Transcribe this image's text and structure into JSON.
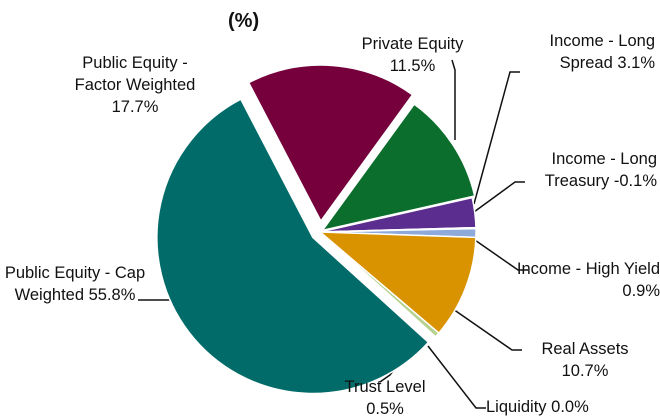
{
  "chart_data": {
    "type": "pie",
    "title": "(%)",
    "categories": [
      "Private Equity",
      "Income - Long Spread",
      "Income - Long Treasury",
      "Income - High Yield",
      "Real Assets",
      "Liquidity",
      "Trust Level",
      "Public Equity - Cap Weighted",
      "Public Equity - Factor Weighted"
    ],
    "values": [
      11.5,
      3.1,
      -0.1,
      0.9,
      10.7,
      0.0,
      0.5,
      55.8,
      17.7
    ],
    "value_labels": [
      "11.5%",
      "3.1%",
      "-0.1%",
      "0.9%",
      "10.7%",
      "0.0%",
      "0.5%",
      "55.8%",
      "17.7%"
    ],
    "colors": [
      "#0b6e2c",
      "#5a2d8e",
      "#23427e",
      "#8eaadb",
      "#d99200",
      "#6b6b6b",
      "#b6d08e",
      "#006b68",
      "#75003b"
    ]
  }
}
